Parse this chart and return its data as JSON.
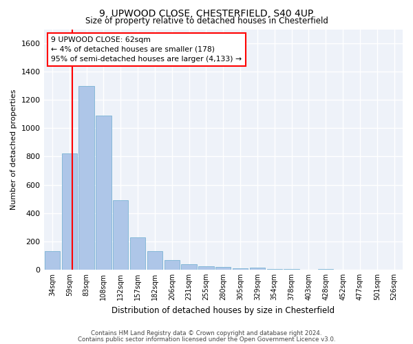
{
  "title1": "9, UPWOOD CLOSE, CHESTERFIELD, S40 4UP",
  "title2": "Size of property relative to detached houses in Chesterfield",
  "xlabel": "Distribution of detached houses by size in Chesterfield",
  "ylabel": "Number of detached properties",
  "footnote1": "Contains HM Land Registry data © Crown copyright and database right 2024.",
  "footnote2": "Contains public sector information licensed under the Open Government Licence v3.0.",
  "categories": [
    "34sqm",
    "59sqm",
    "83sqm",
    "108sqm",
    "132sqm",
    "157sqm",
    "182sqm",
    "206sqm",
    "231sqm",
    "255sqm",
    "280sqm",
    "305sqm",
    "329sqm",
    "354sqm",
    "378sqm",
    "403sqm",
    "428sqm",
    "452sqm",
    "477sqm",
    "501sqm",
    "526sqm"
  ],
  "values": [
    130,
    820,
    1300,
    1090,
    490,
    230,
    130,
    65,
    40,
    25,
    18,
    7,
    15,
    5,
    2,
    1,
    5,
    1,
    1,
    1,
    1
  ],
  "bar_color": "#aec6e8",
  "bar_edge_color": "#7ab3d4",
  "red_line_x": 1.18,
  "annotation_text": "9 UPWOOD CLOSE: 62sqm\n← 4% of detached houses are smaller (178)\n95% of semi-detached houses are larger (4,133) →",
  "ylim": [
    0,
    1700
  ],
  "yticks": [
    0,
    200,
    400,
    600,
    800,
    1000,
    1200,
    1400,
    1600
  ],
  "bg_color": "#eef2f9",
  "grid_color": "#ffffff",
  "bar_width": 0.9
}
